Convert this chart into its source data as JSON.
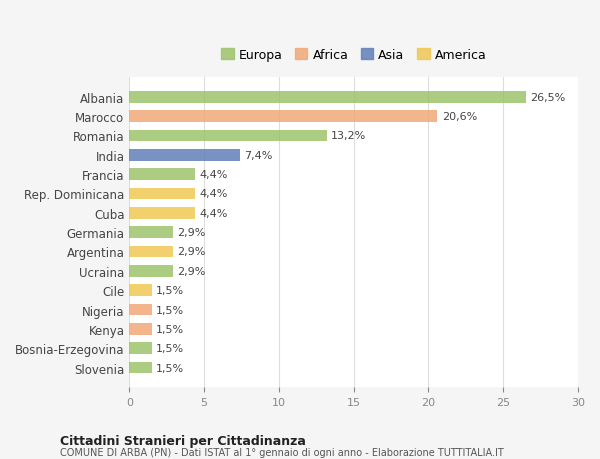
{
  "countries": [
    "Albania",
    "Marocco",
    "Romania",
    "India",
    "Francia",
    "Rep. Dominicana",
    "Cuba",
    "Germania",
    "Argentina",
    "Ucraina",
    "Cile",
    "Nigeria",
    "Kenya",
    "Bosnia-Erzegovina",
    "Slovenia"
  ],
  "values": [
    26.5,
    20.6,
    13.2,
    7.4,
    4.4,
    4.4,
    4.4,
    2.9,
    2.9,
    2.9,
    1.5,
    1.5,
    1.5,
    1.5,
    1.5
  ],
  "labels": [
    "26,5%",
    "20,6%",
    "13,2%",
    "7,4%",
    "4,4%",
    "4,4%",
    "4,4%",
    "2,9%",
    "2,9%",
    "2,9%",
    "1,5%",
    "1,5%",
    "1,5%",
    "1,5%",
    "1,5%"
  ],
  "continents": [
    "Europa",
    "Africa",
    "Europa",
    "Asia",
    "Europa",
    "America",
    "America",
    "Europa",
    "America",
    "Europa",
    "America",
    "Africa",
    "Africa",
    "Europa",
    "Europa"
  ],
  "colors": {
    "Europa": "#9dc36b",
    "Africa": "#f0a878",
    "Asia": "#6080b8",
    "America": "#f0c855"
  },
  "xlim": [
    0,
    30
  ],
  "xticks": [
    0,
    5,
    10,
    15,
    20,
    25,
    30
  ],
  "title": "Cittadini Stranieri per Cittadinanza",
  "subtitle": "COMUNE DI ARBA (PN) - Dati ISTAT al 1° gennaio di ogni anno - Elaborazione TUTTITALIA.IT",
  "background_color": "#f5f5f5",
  "bar_background": "#ffffff",
  "grid_color": "#dddddd",
  "legend_order": [
    "Europa",
    "Africa",
    "Asia",
    "America"
  ]
}
